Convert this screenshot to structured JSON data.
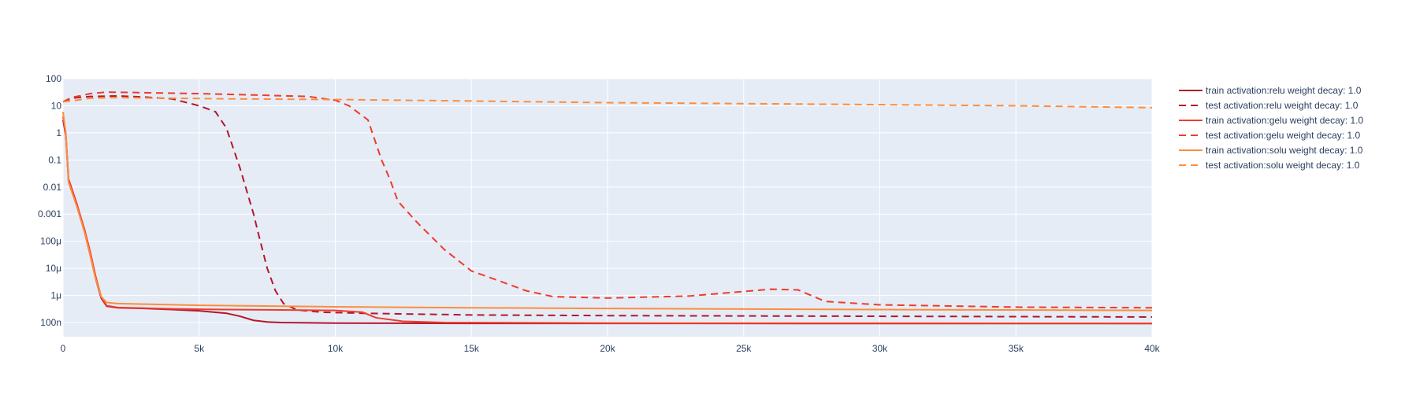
{
  "chart_data": {
    "type": "line",
    "title": "",
    "xlabel": "",
    "ylabel": "",
    "x_range": [
      0,
      40000
    ],
    "y_range": [
      3e-08,
      100
    ],
    "y_scale": "log",
    "grid": true,
    "legend_placement": "right",
    "plot_bg": "#e5ecf6",
    "x_ticks": [
      {
        "value": 0,
        "label": "0"
      },
      {
        "value": 5000,
        "label": "5k"
      },
      {
        "value": 10000,
        "label": "10k"
      },
      {
        "value": 15000,
        "label": "15k"
      },
      {
        "value": 20000,
        "label": "20k"
      },
      {
        "value": 25000,
        "label": "25k"
      },
      {
        "value": 30000,
        "label": "30k"
      },
      {
        "value": 35000,
        "label": "35k"
      },
      {
        "value": 40000,
        "label": "40k"
      }
    ],
    "y_ticks": [
      {
        "value": 100,
        "label": "100"
      },
      {
        "value": 10,
        "label": "10"
      },
      {
        "value": 1,
        "label": "1"
      },
      {
        "value": 0.1,
        "label": "0.1"
      },
      {
        "value": 0.01,
        "label": "0.01"
      },
      {
        "value": 0.001,
        "label": "0.001"
      },
      {
        "value": 0.0001,
        "label": "100μ"
      },
      {
        "value": 1e-05,
        "label": "10μ"
      },
      {
        "value": 1e-06,
        "label": "1μ"
      },
      {
        "value": 1e-07,
        "label": "100n"
      }
    ],
    "series": [
      {
        "name": "train activation:relu weight decay: 1.0",
        "color": "#b2182b",
        "dash": "solid",
        "points": [
          [
            0,
            3
          ],
          [
            100,
            0.8
          ],
          [
            200,
            0.02
          ],
          [
            500,
            0.0025
          ],
          [
            800,
            0.0002
          ],
          [
            1000,
            3e-05
          ],
          [
            1200,
            4e-06
          ],
          [
            1400,
            8e-07
          ],
          [
            1600,
            4e-07
          ],
          [
            2000,
            3.5e-07
          ],
          [
            3000,
            3.3e-07
          ],
          [
            4000,
            3e-07
          ],
          [
            5000,
            2.7e-07
          ],
          [
            6000,
            2.2e-07
          ],
          [
            6500,
            1.7e-07
          ],
          [
            7000,
            1.2e-07
          ],
          [
            7500,
            1.05e-07
          ],
          [
            8000,
            1e-07
          ],
          [
            10000,
            9.5e-08
          ],
          [
            15000,
            9.3e-08
          ],
          [
            20000,
            9.3e-08
          ],
          [
            30000,
            9.2e-08
          ],
          [
            40000,
            9.2e-08
          ]
        ]
      },
      {
        "name": "test activation:relu weight decay: 1.0",
        "color": "#b2182b",
        "dash": "dash",
        "points": [
          [
            0,
            14
          ],
          [
            200,
            17
          ],
          [
            500,
            20
          ],
          [
            1000,
            22
          ],
          [
            2000,
            23
          ],
          [
            3000,
            21
          ],
          [
            4000,
            18
          ],
          [
            5000,
            10
          ],
          [
            5600,
            6
          ],
          [
            6000,
            1.5
          ],
          [
            6500,
            0.05
          ],
          [
            7000,
            0.001
          ],
          [
            7200,
            0.00015
          ],
          [
            7500,
            1e-05
          ],
          [
            7800,
            1.5e-06
          ],
          [
            8100,
            5e-07
          ],
          [
            8600,
            2.9e-07
          ],
          [
            9500,
            2.4e-07
          ],
          [
            11000,
            2.2e-07
          ],
          [
            15000,
            1.9e-07
          ],
          [
            20000,
            1.8e-07
          ],
          [
            30000,
            1.7e-07
          ],
          [
            40000,
            1.6e-07
          ]
        ]
      },
      {
        "name": "train activation:gelu weight decay: 1.0",
        "color": "#ef3b2c",
        "dash": "solid",
        "points": [
          [
            0,
            4
          ],
          [
            100,
            1
          ],
          [
            200,
            0.02
          ],
          [
            500,
            0.0025
          ],
          [
            800,
            0.00025
          ],
          [
            1000,
            4e-05
          ],
          [
            1200,
            5e-06
          ],
          [
            1400,
            9e-07
          ],
          [
            1600,
            4.2e-07
          ],
          [
            2000,
            3.6e-07
          ],
          [
            4000,
            3.2e-07
          ],
          [
            6000,
            3e-07
          ],
          [
            8000,
            2.9e-07
          ],
          [
            10000,
            2.8e-07
          ],
          [
            11000,
            2.4e-07
          ],
          [
            11500,
            1.5e-07
          ],
          [
            12500,
            1.1e-07
          ],
          [
            14000,
            1e-07
          ],
          [
            20000,
            9.5e-08
          ],
          [
            40000,
            9.3e-08
          ]
        ]
      },
      {
        "name": "test activation:gelu weight decay: 1.0",
        "color": "#ef3b2c",
        "dash": "dash",
        "points": [
          [
            0,
            14
          ],
          [
            300,
            20
          ],
          [
            1000,
            28
          ],
          [
            1600,
            32
          ],
          [
            2500,
            31
          ],
          [
            5000,
            28
          ],
          [
            7000,
            25
          ],
          [
            9000,
            22
          ],
          [
            10000,
            16
          ],
          [
            10500,
            10
          ],
          [
            11200,
            3
          ],
          [
            11700,
            0.1
          ],
          [
            12000,
            0.02
          ],
          [
            12300,
            0.003
          ],
          [
            13000,
            0.0005
          ],
          [
            14000,
            5e-05
          ],
          [
            15000,
            8e-06
          ],
          [
            16000,
            3.5e-06
          ],
          [
            17000,
            1.5e-06
          ],
          [
            18000,
            9e-07
          ],
          [
            20000,
            8e-07
          ],
          [
            23000,
            9.5e-07
          ],
          [
            25000,
            1.4e-06
          ],
          [
            26000,
            1.7e-06
          ],
          [
            27000,
            1.6e-06
          ],
          [
            28000,
            6e-07
          ],
          [
            30000,
            4.5e-07
          ],
          [
            35000,
            3.7e-07
          ],
          [
            40000,
            3.5e-07
          ]
        ]
      },
      {
        "name": "train activation:solu weight decay: 1.0",
        "color": "#fd8d3c",
        "dash": "solid",
        "points": [
          [
            0,
            6
          ],
          [
            100,
            1
          ],
          [
            200,
            0.015
          ],
          [
            500,
            0.002
          ],
          [
            800,
            0.0002
          ],
          [
            1000,
            3e-05
          ],
          [
            1200,
            4e-06
          ],
          [
            1400,
            9e-07
          ],
          [
            1600,
            5.5e-07
          ],
          [
            2000,
            5e-07
          ],
          [
            5000,
            4.3e-07
          ],
          [
            10000,
            3.8e-07
          ],
          [
            15000,
            3.5e-07
          ],
          [
            20000,
            3.3e-07
          ],
          [
            30000,
            3e-07
          ],
          [
            40000,
            2.8e-07
          ]
        ]
      },
      {
        "name": "test activation:solu weight decay: 1.0",
        "color": "#fd8d3c",
        "dash": "dash",
        "points": [
          [
            0,
            14
          ],
          [
            500,
            16
          ],
          [
            1000,
            19
          ],
          [
            2000,
            20
          ],
          [
            4000,
            19
          ],
          [
            6000,
            18
          ],
          [
            10000,
            17
          ],
          [
            15000,
            15
          ],
          [
            20000,
            13
          ],
          [
            25000,
            12
          ],
          [
            30000,
            11
          ],
          [
            35000,
            10
          ],
          [
            40000,
            8.5
          ]
        ]
      }
    ]
  }
}
